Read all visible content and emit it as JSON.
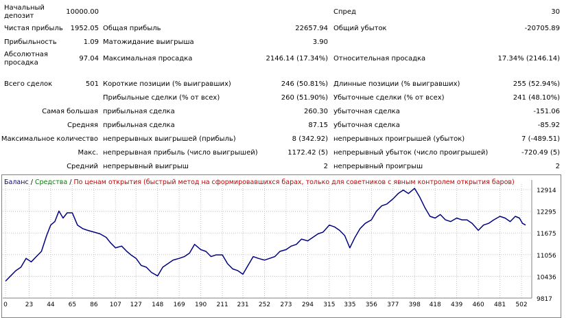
{
  "report": {
    "r0": {
      "c0": "Начальный\nдепозит",
      "c1": "10000.00",
      "c4": "Спред",
      "c5": "30"
    },
    "r1": {
      "c0": "Чистая прибыль",
      "c1": "1952.05",
      "c2": "Общая прибыль",
      "c3": "22657.94",
      "c4": "Общий убыток",
      "c5": "-20705.89"
    },
    "r2": {
      "c0": "Прибыльность",
      "c1": "1.09",
      "c2": "Матожидание выигрыша",
      "c3": "3.90"
    },
    "r3": {
      "c0": "Абсолютная\nпросадка",
      "c1": "97.04",
      "c2": "Максимальная просадка",
      "c3": "2146.14 (17.34%)",
      "c4": "Относительная просадка",
      "c5": "17.34% (2146.14)"
    },
    "r4": {
      "c0": "Всего сделок",
      "c1": "501",
      "c2": "Короткие позиции (% выигравших)",
      "c3": "246 (50.81%)",
      "c4": "Длинные позиции (% выигравших)",
      "c5": "255 (52.94%)"
    },
    "r5": {
      "c2": "Прибыльные сделки (% от всех)",
      "c3": "260 (51.90%)",
      "c4": "Убыточные сделки (% от всех)",
      "c5": "241 (48.10%)"
    },
    "r6": {
      "c0": "Самая большая",
      "c2": "прибыльная сделка",
      "c3": "260.30",
      "c4": "убыточная сделка",
      "c5": "-151.06"
    },
    "r7": {
      "c0": "Средняя",
      "c2": "прибыльная сделка",
      "c3": "87.15",
      "c4": "убыточная сделка",
      "c5": "-85.92"
    },
    "r8": {
      "c0": "Максимальное количество",
      "c2": "непрерывных выигрышей (прибыль)",
      "c3": "8 (342.92)",
      "c4": "непрерывных проигрышей (убыток)",
      "c5": "7 (-489.51)"
    },
    "r9": {
      "c0": "Макс.",
      "c2": "непрерывная прибыль (число выигрышей)",
      "c3": "1172.42 (5)",
      "c4": "непрерывный убыток (число проигрышей)",
      "c5": "-720.49 (5)"
    },
    "r10": {
      "c0": "Средний",
      "c2": "непрерывный выигрыш",
      "c3": "2",
      "c4": "непрерывный проигрыш",
      "c5": "2"
    }
  },
  "legend": {
    "balance": "Баланс",
    "sep1": " / ",
    "equity": "Средства",
    "sep2": " / ",
    "mode": "По ценам открытия (быстрый метод на сформировавшихся барах, только для советников с явным контролем открытия баров)"
  },
  "colors": {
    "balance": "#000080",
    "equity": "#008000",
    "mode": "#c00000",
    "grid": "#c0c0c0"
  },
  "chart_data": {
    "type": "line",
    "x_ticks": [
      0,
      23,
      44,
      65,
      86,
      107,
      127,
      148,
      169,
      190,
      211,
      231,
      252,
      273,
      294,
      315,
      335,
      356,
      377,
      398,
      418,
      439,
      460,
      481,
      502
    ],
    "y_ticks": [
      12914,
      12295,
      11675,
      11056,
      10436,
      9817
    ],
    "xlim": [
      0,
      512
    ],
    "ylim": [
      9817,
      12914
    ],
    "series": [
      {
        "name": "Баланс",
        "x": [
          0,
          5,
          10,
          15,
          20,
          25,
          30,
          35,
          40,
          44,
          48,
          52,
          56,
          60,
          65,
          70,
          75,
          80,
          86,
          92,
          98,
          102,
          107,
          113,
          118,
          122,
          127,
          132,
          137,
          142,
          148,
          153,
          158,
          163,
          169,
          174,
          179,
          184,
          190,
          195,
          200,
          205,
          211,
          216,
          221,
          226,
          231,
          236,
          241,
          246,
          252,
          257,
          262,
          267,
          273,
          278,
          283,
          288,
          294,
          299,
          304,
          309,
          315,
          320,
          325,
          330,
          335,
          340,
          345,
          350,
          356,
          361,
          366,
          371,
          377,
          382,
          387,
          392,
          398,
          403,
          408,
          413,
          418,
          423,
          428,
          433,
          439,
          444,
          449,
          454,
          460,
          465,
          470,
          475,
          481,
          486,
          491,
          496,
          500,
          503,
          506
        ],
        "y": [
          10300,
          10450,
          10600,
          10700,
          10950,
          10850,
          11000,
          11150,
          11600,
          11900,
          12000,
          12300,
          12100,
          12250,
          12250,
          11900,
          11800,
          11750,
          11700,
          11650,
          11550,
          11400,
          11250,
          11300,
          11150,
          11050,
          10950,
          10750,
          10700,
          10550,
          10450,
          10700,
          10800,
          10900,
          10950,
          11000,
          11100,
          11350,
          11200,
          11150,
          11000,
          11050,
          11050,
          10800,
          10650,
          10600,
          10500,
          10750,
          11000,
          10950,
          10900,
          10950,
          11000,
          11150,
          11200,
          11300,
          11350,
          11500,
          11450,
          11550,
          11650,
          11700,
          11900,
          11850,
          11750,
          11600,
          11250,
          11550,
          11800,
          11950,
          12050,
          12300,
          12450,
          12500,
          12650,
          12800,
          12900,
          12800,
          12950,
          12700,
          12400,
          12150,
          12100,
          12200,
          12050,
          12000,
          12100,
          12050,
          12050,
          11950,
          11750,
          11900,
          11950,
          12050,
          12150,
          12100,
          12000,
          12150,
          12100,
          11950,
          11900
        ]
      }
    ]
  }
}
